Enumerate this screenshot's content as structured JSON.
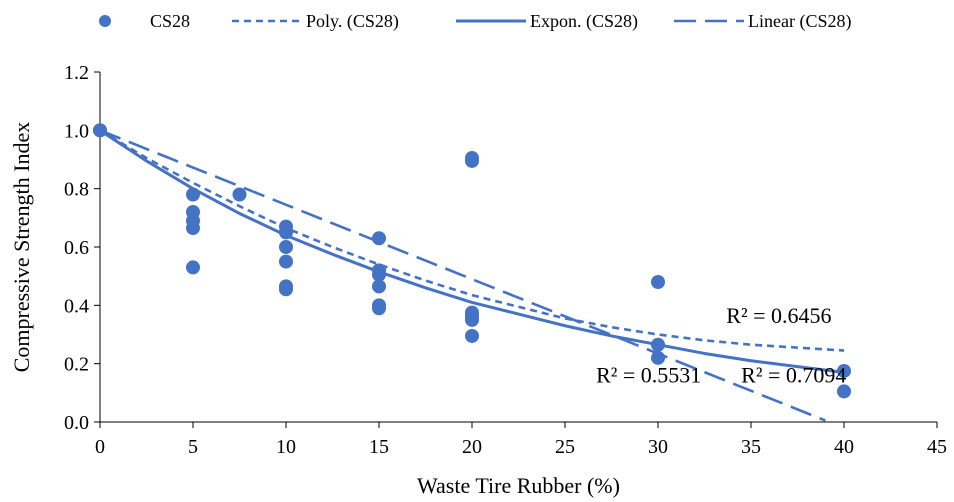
{
  "chart_data": {
    "type": "scatter",
    "xlabel": "Waste Tire Rubber (%)",
    "ylabel": "Compressive Strength Index",
    "xlim": [
      0,
      45
    ],
    "ylim": [
      0.0,
      1.2
    ],
    "x_ticks": [
      "0",
      "5",
      "10",
      "15",
      "20",
      "25",
      "30",
      "35",
      "40",
      "45"
    ],
    "y_ticks": [
      "0.0",
      "0.2",
      "0.4",
      "0.6",
      "0.8",
      "1.0",
      "1.2"
    ],
    "grid": false,
    "legend_position": "top",
    "accent_color": "#4472C4",
    "series": [
      {
        "name": "CS28",
        "style": "marker",
        "points": [
          [
            0,
            1.0
          ],
          [
            0,
            1.0
          ],
          [
            5,
            0.78
          ],
          [
            5,
            0.72
          ],
          [
            5,
            0.69
          ],
          [
            5,
            0.665
          ],
          [
            5,
            0.53
          ],
          [
            7.5,
            0.78
          ],
          [
            10,
            0.67
          ],
          [
            10,
            0.65
          ],
          [
            10,
            0.6
          ],
          [
            10,
            0.55
          ],
          [
            10,
            0.465
          ],
          [
            10,
            0.455
          ],
          [
            15,
            0.63
          ],
          [
            15,
            0.52
          ],
          [
            15,
            0.505
          ],
          [
            15,
            0.465
          ],
          [
            15,
            0.4
          ],
          [
            15,
            0.39
          ],
          [
            20,
            0.905
          ],
          [
            20,
            0.895
          ],
          [
            20,
            0.375
          ],
          [
            20,
            0.36
          ],
          [
            20,
            0.35
          ],
          [
            20,
            0.295
          ],
          [
            30,
            0.48
          ],
          [
            30,
            0.265
          ],
          [
            30,
            0.22
          ],
          [
            40,
            0.175
          ],
          [
            40,
            0.105
          ]
        ]
      },
      {
        "name": "Poly. (CS28)",
        "style": "short-dash",
        "x": [
          0,
          2.5,
          5,
          7.5,
          10,
          12.5,
          15,
          17.5,
          20,
          22.5,
          25,
          27.5,
          30,
          32.5,
          35,
          37.5,
          40
        ],
        "y": [
          1.0,
          0.905,
          0.82,
          0.74,
          0.665,
          0.6,
          0.54,
          0.485,
          0.435,
          0.395,
          0.355,
          0.325,
          0.3,
          0.28,
          0.265,
          0.255,
          0.245
        ]
      },
      {
        "name": "Expon. (CS28)",
        "style": "solid",
        "x": [
          0,
          2.5,
          5,
          7.5,
          10,
          12.5,
          15,
          17.5,
          20,
          22.5,
          25,
          27.5,
          30,
          32.5,
          35,
          37.5,
          40
        ],
        "y": [
          1.0,
          0.895,
          0.8,
          0.715,
          0.64,
          0.575,
          0.515,
          0.46,
          0.41,
          0.37,
          0.33,
          0.295,
          0.265,
          0.235,
          0.21,
          0.19,
          0.17
        ]
      },
      {
        "name": "Linear (CS28)",
        "style": "long-dash",
        "x": [
          0,
          39
        ],
        "y": [
          1.0,
          0.005
        ]
      }
    ],
    "annotations": [
      {
        "text": "R² = 0.6456",
        "x": 36.5,
        "y": 0.34
      },
      {
        "text": "R² = 0.5531",
        "x": 29.5,
        "y": 0.135
      },
      {
        "text": "R² = 0.7094",
        "x": 37.3,
        "y": 0.135
      }
    ]
  }
}
